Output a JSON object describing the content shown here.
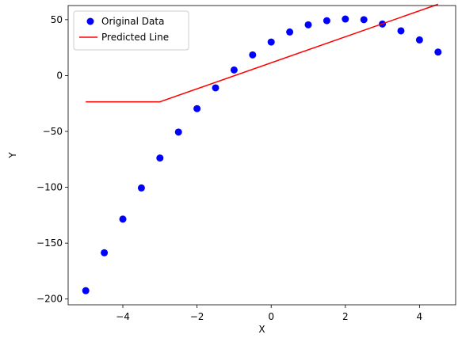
{
  "chart_data": {
    "type": "scatter",
    "xlabel": "X",
    "ylabel": "Y",
    "xlim": [
      -5.475,
      4.975
    ],
    "ylim": [
      -205.15,
      62.65
    ],
    "x_ticks": [
      -4,
      -2,
      0,
      2,
      4
    ],
    "y_ticks": [
      50,
      0,
      -50,
      -100,
      -150,
      -200
    ],
    "x_tick_labels": [
      "−4",
      "−2",
      "0",
      "2",
      "4"
    ],
    "y_tick_labels": [
      "50",
      "0",
      "−50",
      "−100",
      "−150",
      "−200"
    ],
    "grid": false,
    "legend_position": "top-left",
    "series": [
      {
        "name": "Original Data",
        "kind": "scatter",
        "color": "#0000ff",
        "x": [
          -5,
          -4.5,
          -4,
          -3.5,
          -3,
          -2.5,
          -2,
          -1.5,
          -1,
          -0.5,
          0,
          0.5,
          1,
          1.5,
          2,
          2.5,
          3,
          3.5,
          4,
          4.5
        ],
        "y": [
          -192.5,
          -158.6,
          -128.5,
          -100.6,
          -73.8,
          -50.6,
          -29.6,
          -11.0,
          5.0,
          18.5,
          30.0,
          39.0,
          45.4,
          49.1,
          50.6,
          50.0,
          46.1,
          40.0,
          31.9,
          21.0
        ]
      },
      {
        "name": "Predicted Line",
        "kind": "line",
        "color": "#ff0000",
        "x": [
          -5,
          -3,
          4.5
        ],
        "y": [
          -23.5,
          -23.5,
          63.8
        ]
      }
    ]
  }
}
